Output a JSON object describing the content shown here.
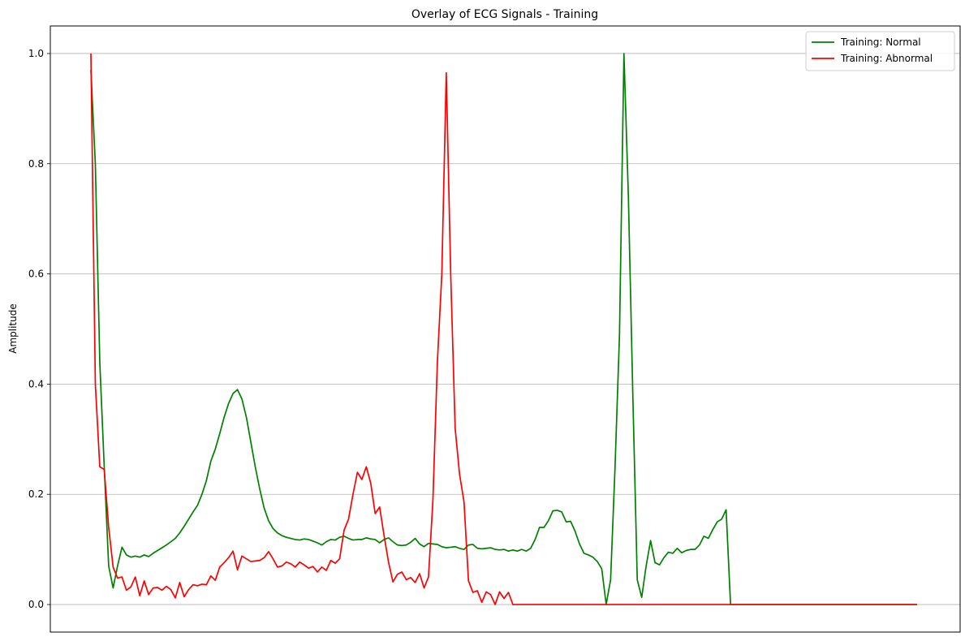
{
  "chart_data": {
    "type": "line",
    "title": "Overlay of ECG Signals - Training",
    "xlabel": "",
    "ylabel": "Amplitude",
    "x_range": [
      0,
      186
    ],
    "ylim": [
      -0.05,
      1.05
    ],
    "y_ticks": [
      0.0,
      0.2,
      0.4,
      0.6,
      0.8,
      1.0
    ],
    "y_tick_labels": [
      "0.0",
      "0.2",
      "0.4",
      "0.6",
      "0.8",
      "1.0"
    ],
    "grid": "horizontal",
    "legend_position": "top-right",
    "series": [
      {
        "name": "Training: Normal",
        "color": "#008000",
        "points": [
          [
            0,
            0.97
          ],
          [
            1,
            0.8
          ],
          [
            2,
            0.44
          ],
          [
            3,
            0.25
          ],
          [
            4,
            0.07
          ],
          [
            5,
            0.03
          ],
          [
            6,
            0.07
          ],
          [
            7,
            0.104
          ],
          [
            8,
            0.09
          ],
          [
            9,
            0.086
          ],
          [
            10,
            0.088
          ],
          [
            11,
            0.086
          ],
          [
            12,
            0.09
          ],
          [
            13,
            0.087
          ],
          [
            14,
            0.093
          ],
          [
            15,
            0.098
          ],
          [
            16,
            0.103
          ],
          [
            17,
            0.108
          ],
          [
            18,
            0.114
          ],
          [
            19,
            0.12
          ],
          [
            20,
            0.13
          ],
          [
            21,
            0.142
          ],
          [
            22,
            0.155
          ],
          [
            23,
            0.168
          ],
          [
            24,
            0.18
          ],
          [
            25,
            0.2
          ],
          [
            26,
            0.225
          ],
          [
            27,
            0.26
          ],
          [
            28,
            0.282
          ],
          [
            29,
            0.31
          ],
          [
            30,
            0.34
          ],
          [
            31,
            0.365
          ],
          [
            32,
            0.383
          ],
          [
            33,
            0.39
          ],
          [
            34,
            0.373
          ],
          [
            35,
            0.34
          ],
          [
            36,
            0.295
          ],
          [
            37,
            0.25
          ],
          [
            38,
            0.21
          ],
          [
            39,
            0.175
          ],
          [
            40,
            0.152
          ],
          [
            41,
            0.138
          ],
          [
            42,
            0.13
          ],
          [
            43,
            0.125
          ],
          [
            44,
            0.122
          ],
          [
            45,
            0.12
          ],
          [
            46,
            0.118
          ],
          [
            47,
            0.117
          ],
          [
            48,
            0.119
          ],
          [
            49,
            0.118
          ],
          [
            50,
            0.115
          ],
          [
            51,
            0.112
          ],
          [
            52,
            0.108
          ],
          [
            53,
            0.114
          ],
          [
            54,
            0.118
          ],
          [
            55,
            0.117
          ],
          [
            56,
            0.122
          ],
          [
            57,
            0.124
          ],
          [
            58,
            0.12
          ],
          [
            59,
            0.117
          ],
          [
            60,
            0.118
          ],
          [
            61,
            0.118
          ],
          [
            62,
            0.121
          ],
          [
            63,
            0.119
          ],
          [
            64,
            0.118
          ],
          [
            65,
            0.112
          ],
          [
            66,
            0.118
          ],
          [
            67,
            0.121
          ],
          [
            68,
            0.114
          ],
          [
            69,
            0.108
          ],
          [
            70,
            0.107
          ],
          [
            71,
            0.108
          ],
          [
            72,
            0.113
          ],
          [
            73,
            0.12
          ],
          [
            74,
            0.11
          ],
          [
            75,
            0.105
          ],
          [
            76,
            0.111
          ],
          [
            77,
            0.11
          ],
          [
            78,
            0.109
          ],
          [
            79,
            0.105
          ],
          [
            80,
            0.103
          ],
          [
            81,
            0.104
          ],
          [
            82,
            0.105
          ],
          [
            83,
            0.102
          ],
          [
            84,
            0.1
          ],
          [
            85,
            0.108
          ],
          [
            86,
            0.109
          ],
          [
            87,
            0.102
          ],
          [
            88,
            0.101
          ],
          [
            89,
            0.102
          ],
          [
            90,
            0.103
          ],
          [
            91,
            0.1
          ],
          [
            92,
            0.099
          ],
          [
            93,
            0.1
          ],
          [
            94,
            0.097
          ],
          [
            95,
            0.099
          ],
          [
            96,
            0.097
          ],
          [
            97,
            0.1
          ],
          [
            98,
            0.097
          ],
          [
            99,
            0.102
          ],
          [
            100,
            0.118
          ],
          [
            101,
            0.14
          ],
          [
            102,
            0.14
          ],
          [
            103,
            0.152
          ],
          [
            104,
            0.17
          ],
          [
            105,
            0.171
          ],
          [
            106,
            0.168
          ],
          [
            107,
            0.15
          ],
          [
            108,
            0.151
          ],
          [
            109,
            0.133
          ],
          [
            110,
            0.11
          ],
          [
            111,
            0.093
          ],
          [
            112,
            0.09
          ],
          [
            113,
            0.086
          ],
          [
            114,
            0.078
          ],
          [
            115,
            0.065
          ],
          [
            116,
            0.0
          ],
          [
            117,
            0.045
          ],
          [
            118,
            0.25
          ],
          [
            119,
            0.49
          ],
          [
            120,
            1.0
          ],
          [
            121,
            0.74
          ],
          [
            122,
            0.38
          ],
          [
            123,
            0.045
          ],
          [
            124,
            0.013
          ],
          [
            125,
            0.07
          ],
          [
            126,
            0.116
          ],
          [
            127,
            0.076
          ],
          [
            128,
            0.072
          ],
          [
            129,
            0.085
          ],
          [
            130,
            0.095
          ],
          [
            131,
            0.093
          ],
          [
            132,
            0.102
          ],
          [
            133,
            0.094
          ],
          [
            134,
            0.098
          ],
          [
            135,
            0.1
          ],
          [
            136,
            0.1
          ],
          [
            137,
            0.108
          ],
          [
            138,
            0.124
          ],
          [
            139,
            0.12
          ],
          [
            140,
            0.136
          ],
          [
            141,
            0.15
          ],
          [
            142,
            0.155
          ],
          [
            143,
            0.172
          ],
          [
            144,
            0.0
          ],
          [
            145,
            0.0
          ],
          [
            186,
            0.0
          ]
        ]
      },
      {
        "name": "Training: Abnormal",
        "color": "#ff0000",
        "points": [
          [
            0,
            1.0
          ],
          [
            1,
            0.4
          ],
          [
            2,
            0.25
          ],
          [
            3,
            0.245
          ],
          [
            4,
            0.14
          ],
          [
            5,
            0.068
          ],
          [
            6,
            0.048
          ],
          [
            7,
            0.05
          ],
          [
            8,
            0.026
          ],
          [
            9,
            0.032
          ],
          [
            10,
            0.05
          ],
          [
            11,
            0.016
          ],
          [
            12,
            0.043
          ],
          [
            13,
            0.018
          ],
          [
            14,
            0.03
          ],
          [
            15,
            0.031
          ],
          [
            16,
            0.026
          ],
          [
            17,
            0.033
          ],
          [
            18,
            0.027
          ],
          [
            19,
            0.012
          ],
          [
            20,
            0.04
          ],
          [
            21,
            0.014
          ],
          [
            22,
            0.027
          ],
          [
            23,
            0.036
          ],
          [
            24,
            0.034
          ],
          [
            25,
            0.037
          ],
          [
            26,
            0.036
          ],
          [
            27,
            0.052
          ],
          [
            28,
            0.044
          ],
          [
            29,
            0.068
          ],
          [
            30,
            0.076
          ],
          [
            31,
            0.085
          ],
          [
            32,
            0.097
          ],
          [
            33,
            0.063
          ],
          [
            34,
            0.088
          ],
          [
            35,
            0.083
          ],
          [
            36,
            0.078
          ],
          [
            37,
            0.079
          ],
          [
            38,
            0.08
          ],
          [
            39,
            0.085
          ],
          [
            40,
            0.096
          ],
          [
            41,
            0.083
          ],
          [
            42,
            0.068
          ],
          [
            43,
            0.07
          ],
          [
            44,
            0.077
          ],
          [
            45,
            0.074
          ],
          [
            46,
            0.068
          ],
          [
            47,
            0.077
          ],
          [
            48,
            0.072
          ],
          [
            49,
            0.066
          ],
          [
            50,
            0.069
          ],
          [
            51,
            0.059
          ],
          [
            52,
            0.068
          ],
          [
            53,
            0.062
          ],
          [
            54,
            0.08
          ],
          [
            55,
            0.075
          ],
          [
            56,
            0.083
          ],
          [
            57,
            0.135
          ],
          [
            58,
            0.155
          ],
          [
            59,
            0.2
          ],
          [
            60,
            0.24
          ],
          [
            61,
            0.227
          ],
          [
            62,
            0.25
          ],
          [
            63,
            0.22
          ],
          [
            64,
            0.165
          ],
          [
            65,
            0.177
          ],
          [
            66,
            0.125
          ],
          [
            67,
            0.077
          ],
          [
            68,
            0.041
          ],
          [
            69,
            0.055
          ],
          [
            70,
            0.059
          ],
          [
            71,
            0.045
          ],
          [
            72,
            0.049
          ],
          [
            73,
            0.04
          ],
          [
            74,
            0.056
          ],
          [
            75,
            0.03
          ],
          [
            76,
            0.05
          ],
          [
            77,
            0.19
          ],
          [
            78,
            0.44
          ],
          [
            79,
            0.6
          ],
          [
            80,
            0.965
          ],
          [
            81,
            0.6
          ],
          [
            82,
            0.32
          ],
          [
            83,
            0.236
          ],
          [
            84,
            0.186
          ],
          [
            85,
            0.043
          ],
          [
            86,
            0.022
          ],
          [
            87,
            0.025
          ],
          [
            88,
            0.004
          ],
          [
            89,
            0.023
          ],
          [
            90,
            0.018
          ],
          [
            91,
            0.0
          ],
          [
            92,
            0.023
          ],
          [
            93,
            0.011
          ],
          [
            94,
            0.022
          ],
          [
            95,
            0.0
          ],
          [
            186,
            0.0
          ]
        ]
      }
    ]
  }
}
